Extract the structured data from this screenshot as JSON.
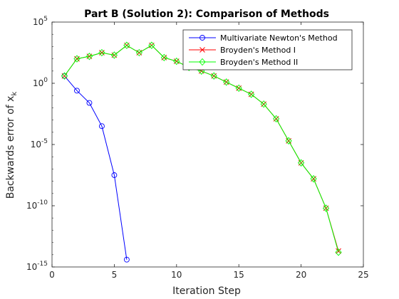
{
  "chart_data": {
    "type": "line",
    "title": "Part B (Solution 2): Comparison of Methods",
    "xlabel": "Iteration Step",
    "ylabel": "Backwards error of x",
    "ylabel_subscript": "k",
    "xlim": [
      0,
      25
    ],
    "ylim_exponents": [
      -15,
      5
    ],
    "y_scale": "log",
    "x_ticks": [
      0,
      5,
      10,
      15,
      20,
      25
    ],
    "y_tick_base": "10",
    "y_tick_exponents": [
      "-15",
      "-10",
      "-5",
      "0",
      "5"
    ],
    "grid": false,
    "legend_position": "top-right",
    "series": [
      {
        "name": "Multivariate Newton's Method",
        "color": "#0000ff",
        "marker": "circle",
        "x": [
          1,
          2,
          3,
          4,
          5,
          6
        ],
        "log10_y": [
          0.6,
          -0.6,
          -1.6,
          -3.5,
          -7.5,
          -14.4
        ]
      },
      {
        "name": "Broyden's Method I",
        "color": "#ff0000",
        "marker": "x",
        "x": [
          1,
          2,
          3,
          4,
          5,
          6,
          7,
          8,
          9,
          10,
          11,
          12,
          13,
          14,
          15,
          16,
          17,
          18,
          19,
          20,
          21,
          22,
          23
        ],
        "log10_y": [
          0.6,
          2.0,
          2.2,
          2.5,
          2.3,
          3.1,
          2.5,
          3.1,
          2.1,
          1.8,
          1.3,
          1.0,
          0.6,
          0.1,
          -0.4,
          -0.9,
          -1.7,
          -2.9,
          -4.7,
          -6.5,
          -7.8,
          -10.2,
          -13.7
        ]
      },
      {
        "name": "Broyden's Method II",
        "color": "#00ff00",
        "marker": "diamond",
        "x": [
          1,
          2,
          3,
          4,
          5,
          6,
          7,
          8,
          9,
          10,
          11,
          12,
          13,
          14,
          15,
          16,
          17,
          18,
          19,
          20,
          21,
          22,
          23
        ],
        "log10_y": [
          0.6,
          2.0,
          2.2,
          2.5,
          2.3,
          3.1,
          2.5,
          3.1,
          2.1,
          1.8,
          1.3,
          1.0,
          0.6,
          0.1,
          -0.4,
          -0.9,
          -1.7,
          -2.9,
          -4.7,
          -6.5,
          -7.8,
          -10.2,
          -13.8
        ]
      }
    ]
  }
}
